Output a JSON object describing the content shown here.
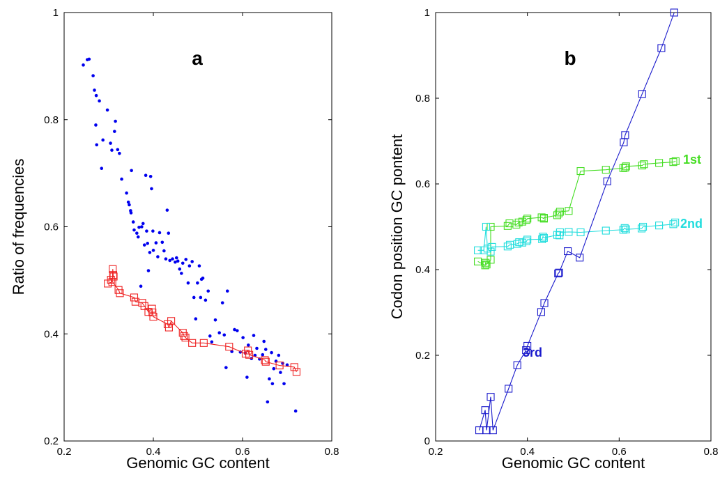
{
  "chart_data": [
    {
      "type": "scatter",
      "panel_label": "a",
      "xlabel": "Genomic GC content",
      "ylabel": "Ratio of frequencies",
      "xlim": [
        0.2,
        0.8
      ],
      "ylim": [
        0.2,
        1.0
      ],
      "xticks": [
        "0.2",
        "0.4",
        "0.6",
        "0.8"
      ],
      "yticks": [
        "0.2",
        "0.4",
        "0.6",
        "0.8",
        "1"
      ],
      "colors": {
        "dots": "#0000ee",
        "line": "#ee2222"
      },
      "series": [
        {
          "style": "dots",
          "points": [
            [
              0.243,
              0.902
            ],
            [
              0.252,
              0.912
            ],
            [
              0.256,
              0.913
            ],
            [
              0.265,
              0.882
            ],
            [
              0.268,
              0.855
            ],
            [
              0.272,
              0.845
            ],
            [
              0.271,
              0.79
            ],
            [
              0.273,
              0.753
            ],
            [
              0.279,
              0.835
            ],
            [
              0.284,
              0.709
            ],
            [
              0.287,
              0.762
            ],
            [
              0.297,
              0.818
            ],
            [
              0.304,
              0.756
            ],
            [
              0.307,
              0.743
            ],
            [
              0.315,
              0.797
            ],
            [
              0.313,
              0.778
            ],
            [
              0.32,
              0.744
            ],
            [
              0.324,
              0.737
            ],
            [
              0.329,
              0.689
            ],
            [
              0.34,
              0.663
            ],
            [
              0.344,
              0.646
            ],
            [
              0.346,
              0.641
            ],
            [
              0.349,
              0.63
            ],
            [
              0.35,
              0.626
            ],
            [
              0.351,
              0.705
            ],
            [
              0.355,
              0.609
            ],
            [
              0.357,
              0.594
            ],
            [
              0.363,
              0.588
            ],
            [
              0.366,
              0.581
            ],
            [
              0.368,
              0.599
            ],
            [
              0.372,
              0.489
            ],
            [
              0.374,
              0.6
            ],
            [
              0.377,
              0.606
            ],
            [
              0.38,
              0.566
            ],
            [
              0.383,
              0.696
            ],
            [
              0.385,
              0.592
            ],
            [
              0.387,
              0.569
            ],
            [
              0.389,
              0.518
            ],
            [
              0.392,
              0.552
            ],
            [
              0.394,
              0.694
            ],
            [
              0.396,
              0.671
            ],
            [
              0.399,
              0.592
            ],
            [
              0.4,
              0.556
            ],
            [
              0.406,
              0.57
            ],
            [
              0.41,
              0.544
            ],
            [
              0.414,
              0.589
            ],
            [
              0.42,
              0.571
            ],
            [
              0.424,
              0.555
            ],
            [
              0.428,
              0.54
            ],
            [
              0.431,
              0.631
            ],
            [
              0.434,
              0.588
            ],
            [
              0.437,
              0.537
            ],
            [
              0.443,
              0.54
            ],
            [
              0.449,
              0.534
            ],
            [
              0.452,
              0.542
            ],
            [
              0.455,
              0.536
            ],
            [
              0.459,
              0.521
            ],
            [
              0.463,
              0.513
            ],
            [
              0.466,
              0.532
            ],
            [
              0.473,
              0.539
            ],
            [
              0.478,
              0.495
            ],
            [
              0.481,
              0.527
            ],
            [
              0.487,
              0.535
            ],
            [
              0.491,
              0.468
            ],
            [
              0.495,
              0.428
            ],
            [
              0.499,
              0.495
            ],
            [
              0.503,
              0.527
            ],
            [
              0.506,
              0.468
            ],
            [
              0.508,
              0.502
            ],
            [
              0.511,
              0.504
            ],
            [
              0.517,
              0.463
            ],
            [
              0.523,
              0.48
            ],
            [
              0.527,
              0.396
            ],
            [
              0.531,
              0.385
            ],
            [
              0.539,
              0.426
            ],
            [
              0.548,
              0.402
            ],
            [
              0.555,
              0.458
            ],
            [
              0.559,
              0.398
            ],
            [
              0.563,
              0.337
            ],
            [
              0.566,
              0.48
            ],
            [
              0.576,
              0.367
            ],
            [
              0.582,
              0.408
            ],
            [
              0.588,
              0.406
            ],
            [
              0.595,
              0.366
            ],
            [
              0.601,
              0.393
            ],
            [
              0.606,
              0.364
            ],
            [
              0.61,
              0.319
            ],
            [
              0.613,
              0.379
            ],
            [
              0.62,
              0.354
            ],
            [
              0.625,
              0.397
            ],
            [
              0.628,
              0.36
            ],
            [
              0.632,
              0.373
            ],
            [
              0.638,
              0.353
            ],
            [
              0.645,
              0.361
            ],
            [
              0.648,
              0.386
            ],
            [
              0.652,
              0.371
            ],
            [
              0.656,
              0.273
            ],
            [
              0.66,
              0.316
            ],
            [
              0.665,
              0.365
            ],
            [
              0.667,
              0.307
            ],
            [
              0.67,
              0.335
            ],
            [
              0.675,
              0.349
            ],
            [
              0.681,
              0.36
            ],
            [
              0.685,
              0.328
            ],
            [
              0.69,
              0.345
            ],
            [
              0.693,
              0.307
            ],
            [
              0.7,
              0.342
            ],
            [
              0.719,
              0.256
            ]
          ]
        },
        {
          "style": "line-squares",
          "points": [
            [
              0.298,
              0.494
            ],
            [
              0.308,
              0.497
            ],
            [
              0.309,
              0.521
            ],
            [
              0.31,
              0.51
            ],
            [
              0.311,
              0.507
            ],
            [
              0.305,
              0.501
            ],
            [
              0.322,
              0.482
            ],
            [
              0.325,
              0.476
            ],
            [
              0.357,
              0.468
            ],
            [
              0.36,
              0.46
            ],
            [
              0.375,
              0.458
            ],
            [
              0.38,
              0.452
            ],
            [
              0.389,
              0.441
            ],
            [
              0.397,
              0.447
            ],
            [
              0.398,
              0.44
            ],
            [
              0.4,
              0.432
            ],
            [
              0.432,
              0.418
            ],
            [
              0.435,
              0.412
            ],
            [
              0.44,
              0.424
            ],
            [
              0.466,
              0.402
            ],
            [
              0.469,
              0.396
            ],
            [
              0.472,
              0.393
            ],
            [
              0.487,
              0.383
            ],
            [
              0.513,
              0.383
            ],
            [
              0.57,
              0.376
            ],
            [
              0.607,
              0.363
            ],
            [
              0.612,
              0.369
            ],
            [
              0.615,
              0.361
            ],
            [
              0.65,
              0.351
            ],
            [
              0.652,
              0.348
            ],
            [
              0.683,
              0.341
            ],
            [
              0.716,
              0.338
            ],
            [
              0.721,
              0.329
            ]
          ]
        }
      ]
    },
    {
      "type": "line",
      "panel_label": "b",
      "xlabel": "Genomic GC content",
      "ylabel": "Codon position GC pontent",
      "xlim": [
        0.2,
        0.8
      ],
      "ylim": [
        0,
        1
      ],
      "xticks": [
        "0.2",
        "0.4",
        "0.6",
        "0.8"
      ],
      "yticks": [
        "0",
        "0.2",
        "0.4",
        "0.6",
        "0.8",
        "1"
      ],
      "series": [
        {
          "name": "1st",
          "color": "#44dd22",
          "points": [
            [
              0.292,
              0.419
            ],
            [
              0.308,
              0.41
            ],
            [
              0.309,
              0.416
            ],
            [
              0.311,
              0.412
            ],
            [
              0.32,
              0.423
            ],
            [
              0.32,
              0.5
            ],
            [
              0.357,
              0.502
            ],
            [
              0.361,
              0.508
            ],
            [
              0.376,
              0.505
            ],
            [
              0.381,
              0.51
            ],
            [
              0.389,
              0.512
            ],
            [
              0.398,
              0.516
            ],
            [
              0.4,
              0.519
            ],
            [
              0.431,
              0.522
            ],
            [
              0.436,
              0.519
            ],
            [
              0.436,
              0.521
            ],
            [
              0.465,
              0.527
            ],
            [
              0.468,
              0.531
            ],
            [
              0.471,
              0.535
            ],
            [
              0.49,
              0.537
            ],
            [
              0.516,
              0.63
            ],
            [
              0.571,
              0.633
            ],
            [
              0.609,
              0.637
            ],
            [
              0.613,
              0.638
            ],
            [
              0.615,
              0.641
            ],
            [
              0.65,
              0.643
            ],
            [
              0.654,
              0.646
            ],
            [
              0.687,
              0.649
            ],
            [
              0.718,
              0.651
            ],
            [
              0.723,
              0.653
            ]
          ]
        },
        {
          "name": "2nd",
          "color": "#22dddd",
          "points": [
            [
              0.292,
              0.445
            ],
            [
              0.305,
              0.445
            ],
            [
              0.31,
              0.5
            ],
            [
              0.313,
              0.449
            ],
            [
              0.32,
              0.442
            ],
            [
              0.323,
              0.453
            ],
            [
              0.357,
              0.454
            ],
            [
              0.362,
              0.458
            ],
            [
              0.378,
              0.46
            ],
            [
              0.382,
              0.464
            ],
            [
              0.389,
              0.463
            ],
            [
              0.398,
              0.466
            ],
            [
              0.4,
              0.47
            ],
            [
              0.432,
              0.471
            ],
            [
              0.434,
              0.477
            ],
            [
              0.436,
              0.474
            ],
            [
              0.465,
              0.481
            ],
            [
              0.47,
              0.48
            ],
            [
              0.471,
              0.487
            ],
            [
              0.49,
              0.488
            ],
            [
              0.516,
              0.487
            ],
            [
              0.571,
              0.491
            ],
            [
              0.609,
              0.493
            ],
            [
              0.612,
              0.497
            ],
            [
              0.615,
              0.494
            ],
            [
              0.649,
              0.496
            ],
            [
              0.652,
              0.5
            ],
            [
              0.687,
              0.503
            ],
            [
              0.718,
              0.506
            ],
            [
              0.722,
              0.51
            ]
          ]
        },
        {
          "name": "3rd",
          "color": "#1a1acc",
          "points": [
            [
              0.295,
              0.025
            ],
            [
              0.308,
              0.072
            ],
            [
              0.311,
              0.025
            ],
            [
              0.32,
              0.103
            ],
            [
              0.325,
              0.025
            ],
            [
              0.359,
              0.122
            ],
            [
              0.378,
              0.177
            ],
            [
              0.397,
              0.212
            ],
            [
              0.4,
              0.222
            ],
            [
              0.43,
              0.301
            ],
            [
              0.437,
              0.322
            ],
            [
              0.467,
              0.391
            ],
            [
              0.469,
              0.393
            ],
            [
              0.488,
              0.443
            ],
            [
              0.514,
              0.428
            ],
            [
              0.574,
              0.606
            ],
            [
              0.61,
              0.697
            ],
            [
              0.613,
              0.714
            ],
            [
              0.65,
              0.81
            ],
            [
              0.692,
              0.917
            ],
            [
              0.72,
              1.0
            ]
          ]
        }
      ]
    }
  ]
}
